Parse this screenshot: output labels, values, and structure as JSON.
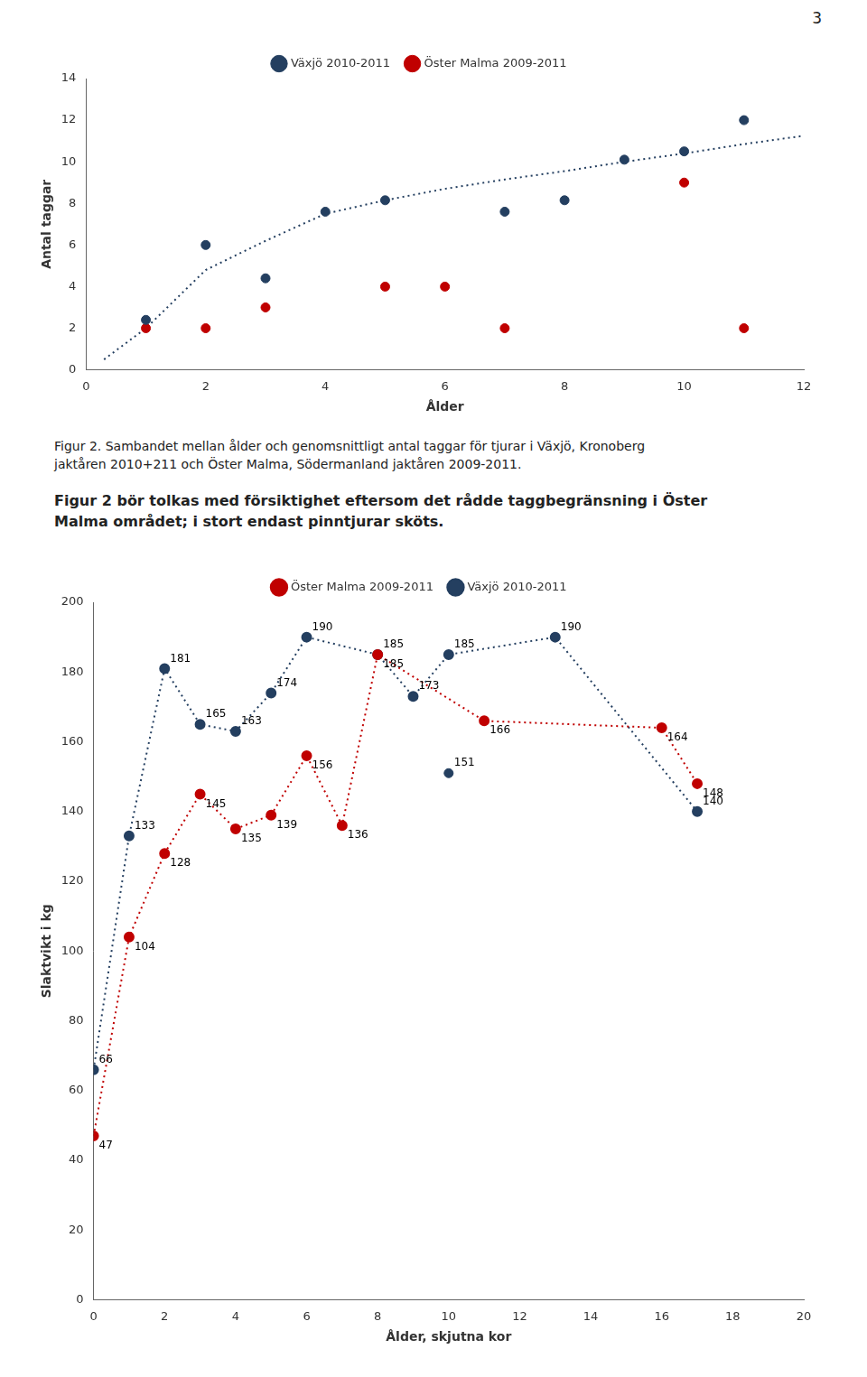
{
  "chart_data": [
    {
      "type": "scatter",
      "x_label": "Ålder",
      "y_label": "Antal taggar",
      "xlim": [
        0,
        12
      ],
      "ylim": [
        0,
        14
      ],
      "xticks": [
        0,
        2,
        4,
        6,
        8,
        10,
        12
      ],
      "yticks": [
        0,
        2,
        4,
        6,
        8,
        10,
        12,
        14
      ],
      "grid": false,
      "legend": "top",
      "annotations": [
        "3",
        "Figur 2. Sambandet mellan ålder och genomsnittligt antal taggar för tjurar i Växjö, Kronoberg\njaktåren 2010+211 och Öster Malma, Södermanland jaktåren 2009-2011.",
        "Figur 2 bör tolkas med försiktighet eftersom det rådde taggbegränsning i Öster\nMalma området; i stort endast pinntjurar sköts."
      ],
      "series": [
        {
          "name": "Växjö 2010-2011",
          "color": "#243F60",
          "type": "scatter",
          "marker": "circle",
          "x": [
            1,
            2,
            3,
            4,
            5,
            7,
            8,
            9,
            10,
            11
          ],
          "values": [
            2.4,
            6.0,
            4.4,
            7.6,
            8.15,
            7.6,
            8.15,
            10.1,
            10.5,
            12.0
          ]
        },
        {
          "name": "Öster Malma 2009-2011",
          "color": "#C00000",
          "type": "scatter",
          "marker": "circle",
          "x": [
            1,
            2,
            3,
            5,
            6,
            7,
            10,
            11
          ],
          "values": [
            2.0,
            2.0,
            3.0,
            4.0,
            4.0,
            2.0,
            9.0,
            2.0
          ]
        },
        {
          "color": "#243F60",
          "type": "line",
          "marker": "none",
          "line_style": "dotted",
          "x": [
            0.3,
            1,
            2,
            3,
            4,
            5,
            6,
            7,
            8,
            9,
            10,
            11,
            12
          ],
          "values": [
            0.5,
            2.0,
            4.8,
            6.2,
            7.5,
            8.15,
            8.7,
            9.15,
            9.55,
            10.0,
            10.4,
            10.85,
            11.25
          ]
        }
      ]
    },
    {
      "type": "line",
      "x_label": "Ålder, skjutna kor",
      "y_label": "Slaktvikt i kg",
      "xlim": [
        0,
        20
      ],
      "ylim": [
        0,
        200
      ],
      "xticks": [
        0,
        2,
        4,
        6,
        8,
        10,
        12,
        14,
        16,
        18,
        20
      ],
      "yticks": [
        0,
        20,
        40,
        60,
        80,
        100,
        120,
        140,
        160,
        180,
        200
      ],
      "grid": false,
      "legend": "top",
      "data_labels": true,
      "series": [
        {
          "name": "Öster Malma 2009-2011",
          "color": "#C00000",
          "type": "line",
          "marker": "circle",
          "line_style": "dotted",
          "x": [
            0,
            1,
            2,
            3,
            4,
            5,
            6,
            7,
            8,
            11,
            16,
            17
          ],
          "values": [
            47,
            104,
            128,
            145,
            135,
            139,
            156,
            136,
            185,
            166,
            164,
            148
          ]
        },
        {
          "name": "Växjö 2010-2011",
          "color": "#243F60",
          "type": "line",
          "marker": "circle",
          "line_style": "dotted",
          "x": [
            0,
            1,
            2,
            3,
            4,
            5,
            6,
            8,
            9,
            10,
            13,
            17
          ],
          "values": [
            66,
            133,
            181,
            165,
            163,
            174,
            190,
            185,
            173,
            185,
            190,
            140
          ]
        },
        {
          "color": "#243F60",
          "type": "scatter",
          "marker": "circle",
          "x": [
            10
          ],
          "values": [
            151
          ]
        }
      ]
    }
  ]
}
